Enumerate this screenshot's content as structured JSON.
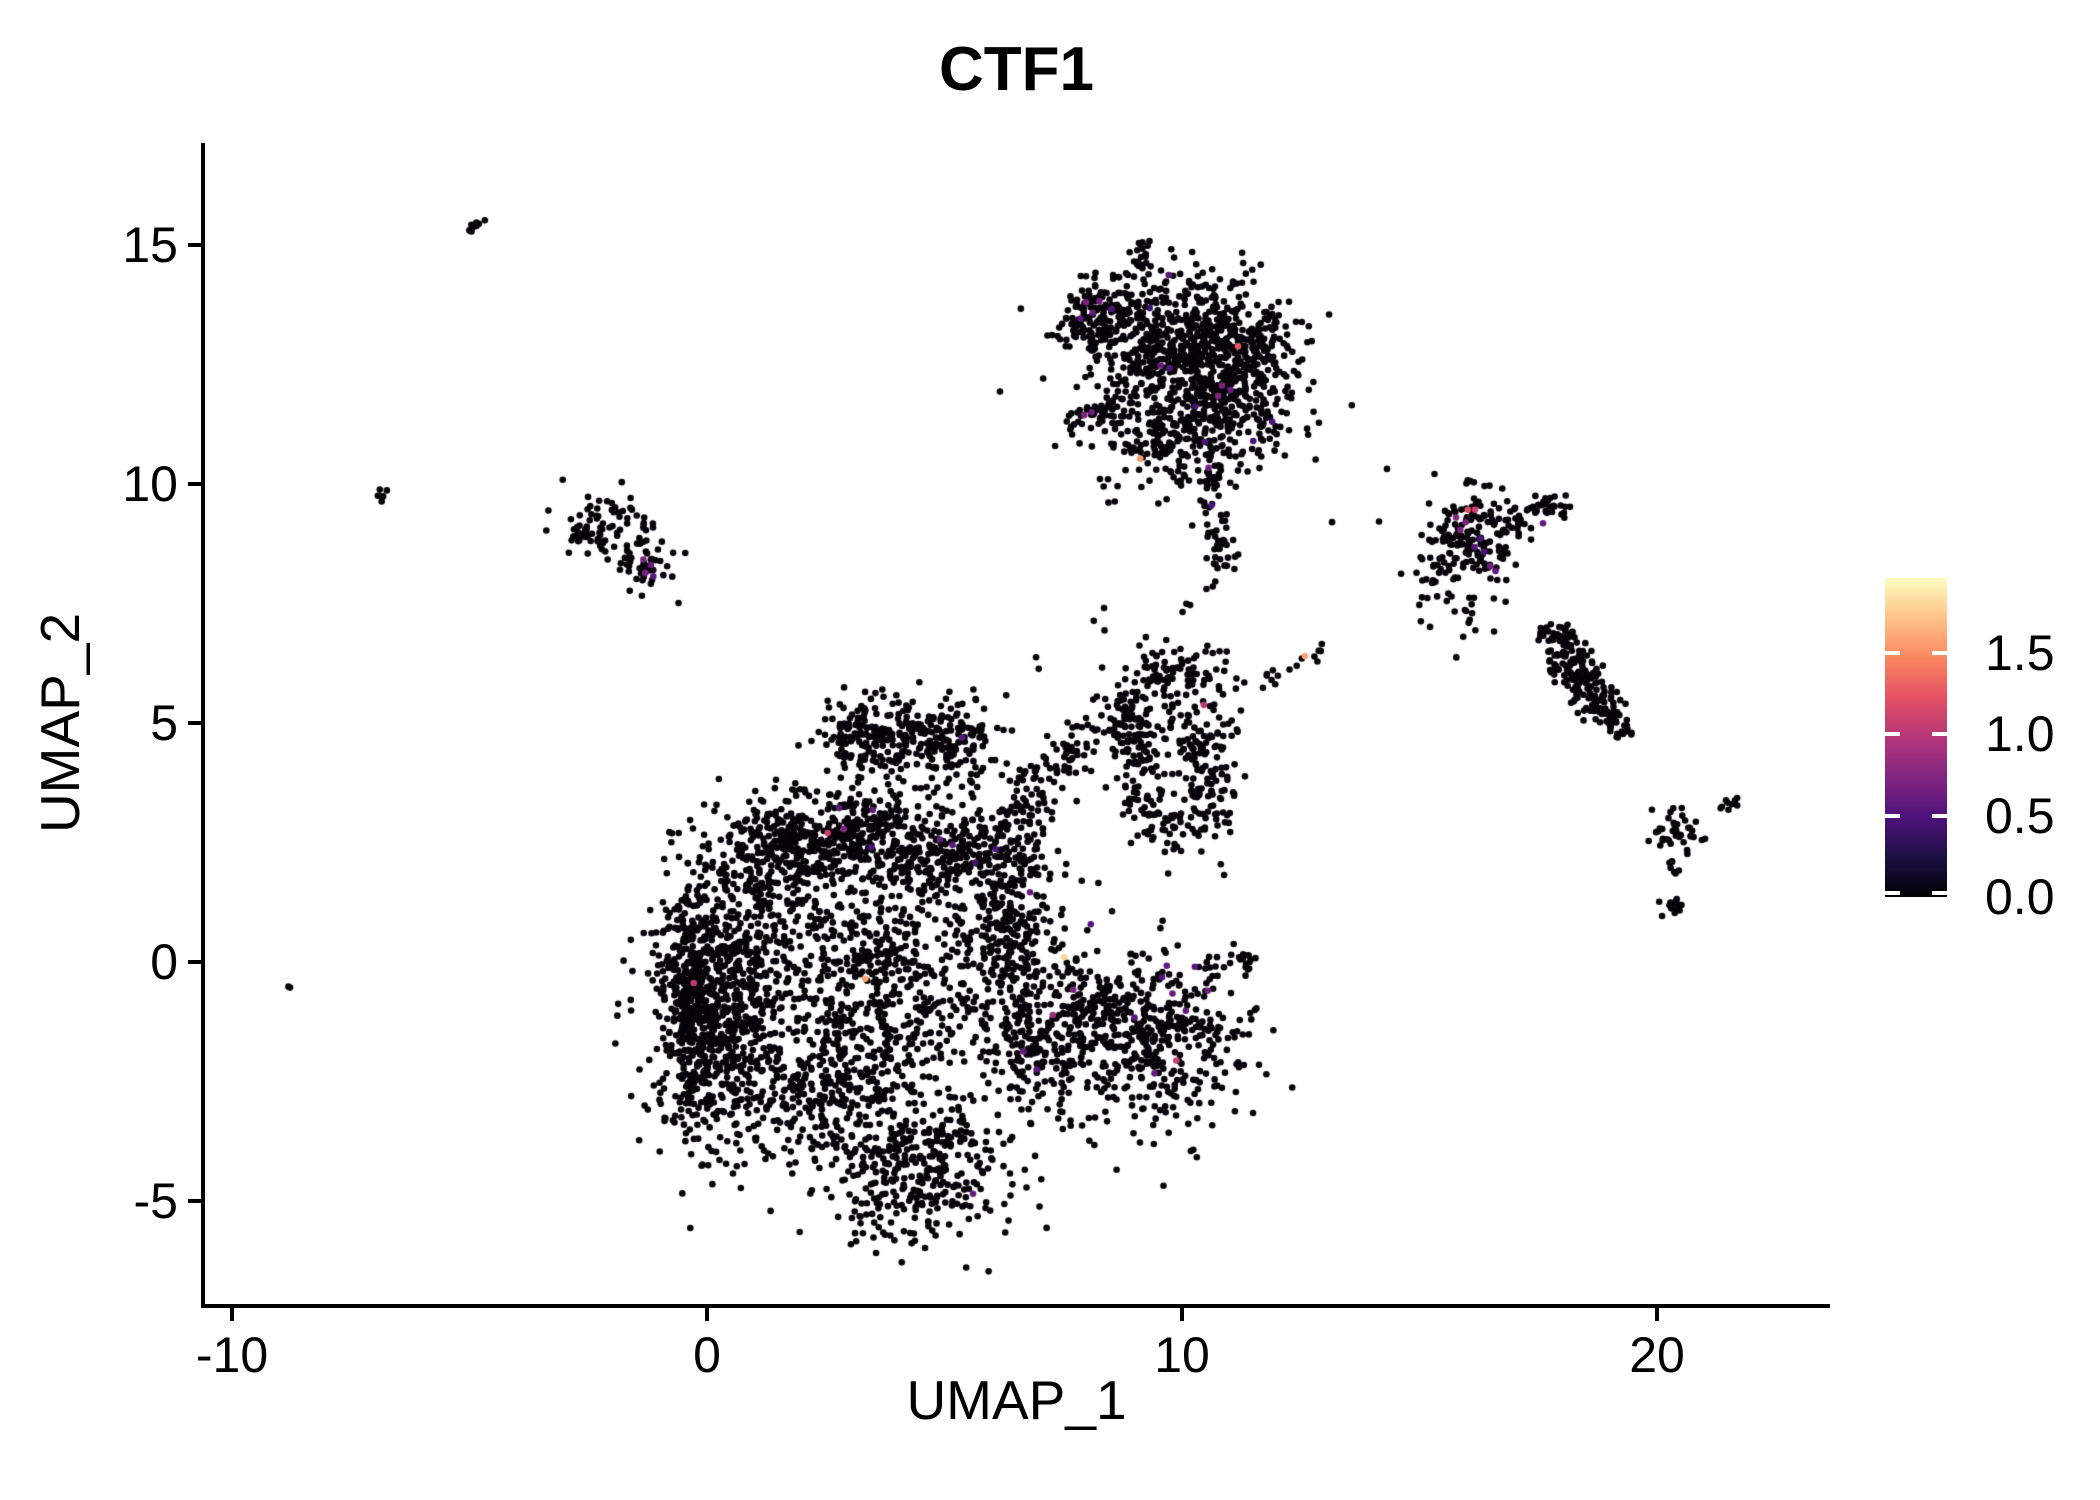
{
  "title": "CTF1",
  "axes": {
    "x": {
      "label": "UMAP_1",
      "ticks": [
        "-10",
        "0",
        "10",
        "20"
      ],
      "tick_values": [
        -10,
        0,
        10,
        20
      ],
      "domain": [
        -10.6,
        23.6
      ]
    },
    "y": {
      "label": "UMAP_2",
      "ticks": [
        "-5",
        "0",
        "5",
        "10",
        "15"
      ],
      "tick_values": [
        -5,
        0,
        5,
        10,
        15
      ],
      "domain": [
        -7.15,
        17.15
      ]
    }
  },
  "legend": {
    "tick_labels": [
      "0.0",
      "0.5",
      "1.0",
      "1.5"
    ],
    "tick_values": [
      0,
      0.5,
      1.0,
      1.5
    ],
    "value_max": 1.96,
    "colormap_name": "magma",
    "colormap_stops": [
      "#000004",
      "#1c1044",
      "#4f127b",
      "#812581",
      "#b5367a",
      "#e55064",
      "#fb8761",
      "#fec287",
      "#fcfdbf"
    ]
  },
  "chart_data": {
    "type": "scatter",
    "title": "CTF1",
    "xlabel": "UMAP_1",
    "ylabel": "UMAP_2",
    "xlim": [
      -10.6,
      23.6
    ],
    "ylim": [
      -7.15,
      17.15
    ],
    "grid": false,
    "legend_position": "right",
    "point_radius_px": 3.3,
    "base_point_color": "#060309",
    "colorbar": {
      "tick_values": [
        0,
        0.5,
        1.0,
        1.5
      ],
      "max_value": 1.96,
      "colormap": "magma"
    },
    "seed": 42,
    "clusters": [
      {
        "name": "top-upperleft-lobe",
        "shape": "gauss",
        "cx": 8.3,
        "cy": 13.55,
        "sx": 0.5,
        "sy": 0.4,
        "n": 170
      },
      {
        "name": "top-main-upper",
        "shape": "gauss",
        "cx": 10.3,
        "cy": 13.25,
        "sx": 0.85,
        "sy": 0.55,
        "n": 280
      },
      {
        "name": "top-right-lobe",
        "shape": "gauss",
        "cx": 11.2,
        "cy": 12.3,
        "sx": 0.7,
        "sy": 0.75,
        "n": 280
      },
      {
        "name": "top-center",
        "shape": "gauss",
        "cx": 9.7,
        "cy": 12.2,
        "sx": 0.8,
        "sy": 0.8,
        "n": 260
      },
      {
        "name": "top-lower-band",
        "shape": "gauss",
        "cx": 10.0,
        "cy": 10.95,
        "sx": 0.9,
        "sy": 0.55,
        "n": 200
      },
      {
        "name": "top-bottom-arm",
        "shape": "line",
        "x1": 10.5,
        "y1": 10.35,
        "x2": 10.85,
        "y2": 8.2,
        "w": 0.18,
        "n": 60
      },
      {
        "name": "top-spur",
        "shape": "line",
        "x1": 8.95,
        "y1": 14.3,
        "x2": 9.3,
        "y2": 15.1,
        "w": 0.1,
        "n": 20
      },
      {
        "name": "top-left-arm",
        "shape": "line",
        "x1": 7.6,
        "y1": 11.2,
        "x2": 8.65,
        "y2": 11.7,
        "w": 0.12,
        "n": 32
      },
      {
        "name": "top-halo",
        "shape": "gauss",
        "cx": 9.9,
        "cy": 12.3,
        "sx": 1.5,
        "sy": 1.35,
        "n": 90
      },
      {
        "name": "left-small-upper",
        "shape": "gauss",
        "cx": -2.1,
        "cy": 9.15,
        "sx": 0.45,
        "sy": 0.35,
        "n": 70
      },
      {
        "name": "left-small-lower",
        "shape": "gauss",
        "cx": -1.35,
        "cy": 8.35,
        "sx": 0.35,
        "sy": 0.3,
        "n": 45
      },
      {
        "name": "left-small-spur",
        "shape": "line",
        "x1": -2.95,
        "y1": 8.85,
        "x2": -2.35,
        "y2": 9.0,
        "w": 0.08,
        "n": 12
      },
      {
        "name": "tiny-streak-topleft",
        "shape": "line",
        "x1": -5.0,
        "y1": 15.3,
        "x2": -4.62,
        "y2": 15.62,
        "w": 0.05,
        "n": 8
      },
      {
        "name": "tiny-pair-left",
        "shape": "line",
        "x1": -7.0,
        "y1": 9.62,
        "x2": -6.72,
        "y2": 9.88,
        "w": 0.05,
        "n": 6
      },
      {
        "name": "lone-dot-left",
        "shape": "gauss",
        "cx": -8.82,
        "cy": -0.48,
        "sx": 0.04,
        "sy": 0.04,
        "n": 2
      },
      {
        "name": "right-cluster-main",
        "shape": "gauss",
        "cx": 16.1,
        "cy": 8.9,
        "sx": 0.45,
        "sy": 0.5,
        "n": 150
      },
      {
        "name": "right-cluster-arm",
        "shape": "line",
        "x1": 16.6,
        "y1": 9.15,
        "x2": 18.15,
        "y2": 9.72,
        "w": 0.14,
        "n": 55
      },
      {
        "name": "right-cluster-tail",
        "shape": "gauss",
        "cx": 15.6,
        "cy": 7.95,
        "sx": 0.5,
        "sy": 0.45,
        "n": 35
      },
      {
        "name": "right-cluster-dots",
        "shape": "gauss",
        "cx": 16.35,
        "cy": 7.05,
        "sx": 0.3,
        "sy": 0.35,
        "n": 8
      },
      {
        "name": "s-cluster-1",
        "shape": "line",
        "x1": 17.68,
        "y1": 6.95,
        "x2": 18.1,
        "y2": 6.55,
        "w": 0.2,
        "n": 45
      },
      {
        "name": "s-cluster-2",
        "shape": "line",
        "x1": 18.05,
        "y1": 6.55,
        "x2": 18.35,
        "y2": 5.9,
        "w": 0.22,
        "n": 60
      },
      {
        "name": "s-cluster-3",
        "shape": "line",
        "x1": 18.3,
        "y1": 5.9,
        "x2": 18.95,
        "y2": 5.35,
        "w": 0.24,
        "n": 70
      },
      {
        "name": "s-cluster-4",
        "shape": "line",
        "x1": 18.95,
        "y1": 5.35,
        "x2": 19.35,
        "y2": 4.72,
        "w": 0.16,
        "n": 40
      },
      {
        "name": "far-right-small",
        "shape": "gauss",
        "cx": 20.35,
        "cy": 2.7,
        "sx": 0.3,
        "sy": 0.26,
        "n": 40
      },
      {
        "name": "far-right-streak",
        "shape": "line",
        "x1": 21.32,
        "y1": 3.18,
        "x2": 21.7,
        "y2": 3.5,
        "w": 0.06,
        "n": 9
      },
      {
        "name": "far-right-drip",
        "shape": "line",
        "x1": 20.28,
        "y1": 2.28,
        "x2": 20.38,
        "y2": 1.78,
        "w": 0.06,
        "n": 7
      },
      {
        "name": "far-right-clump",
        "shape": "gauss",
        "cx": 20.35,
        "cy": 1.2,
        "sx": 0.16,
        "sy": 0.16,
        "n": 14
      },
      {
        "name": "trail-ne",
        "shape": "line",
        "x1": 11.5,
        "y1": 5.75,
        "x2": 13.05,
        "y2": 6.55,
        "w": 0.08,
        "n": 14
      },
      {
        "name": "ring-top",
        "shape": "gauss",
        "cx": 9.7,
        "cy": 6.05,
        "sx": 0.42,
        "sy": 0.3,
        "n": 60
      },
      {
        "name": "ring-left",
        "shape": "gauss",
        "cx": 9.1,
        "cy": 4.6,
        "sx": 0.3,
        "sy": 0.8,
        "n": 110
      },
      {
        "name": "ring-right",
        "shape": "gauss",
        "cx": 10.5,
        "cy": 4.35,
        "sx": 0.36,
        "sy": 1.0,
        "n": 130
      },
      {
        "name": "ring-bottom",
        "shape": "gauss",
        "cx": 9.8,
        "cy": 2.95,
        "sx": 0.5,
        "sy": 0.35,
        "n": 70
      },
      {
        "name": "ring-fill",
        "shape": "gauss",
        "cx": 9.9,
        "cy": 4.8,
        "sx": 0.7,
        "sy": 0.9,
        "n": 40
      },
      {
        "name": "arm-to-ring",
        "shape": "line",
        "x1": 6.2,
        "y1": 3.0,
        "x2": 9.0,
        "y2": 5.5,
        "w": 0.3,
        "n": 120
      },
      {
        "name": "cap-left",
        "shape": "gauss",
        "cx": 3.4,
        "cy": 4.7,
        "sx": 0.55,
        "sy": 0.45,
        "n": 170
      },
      {
        "name": "cap-right",
        "shape": "gauss",
        "cx": 5.0,
        "cy": 4.6,
        "sx": 0.55,
        "sy": 0.45,
        "n": 170
      },
      {
        "name": "ridge",
        "shape": "gauss",
        "cx": 2.8,
        "cy": 2.6,
        "sx": 1.1,
        "sy": 0.5,
        "n": 420
      },
      {
        "name": "ridge-right",
        "shape": "gauss",
        "cx": 5.2,
        "cy": 2.3,
        "sx": 0.8,
        "sy": 0.5,
        "n": 200
      },
      {
        "name": "left-lobe",
        "shape": "gauss",
        "cx": 0.3,
        "cy": -0.9,
        "sx": 0.75,
        "sy": 1.5,
        "n": 780
      },
      {
        "name": "left-edge-strip",
        "shape": "gauss",
        "cx": -0.3,
        "cy": -0.5,
        "sx": 0.35,
        "sy": 1.3,
        "n": 280
      },
      {
        "name": "center-fill",
        "shape": "gauss",
        "cx": 3.5,
        "cy": -0.3,
        "sx": 1.3,
        "sy": 1.3,
        "n": 600
      },
      {
        "name": "right-band",
        "shape": "gauss",
        "cx": 6.4,
        "cy": 0.6,
        "sx": 0.6,
        "sy": 1.5,
        "n": 420
      },
      {
        "name": "bottom-lobe",
        "shape": "gauss",
        "cx": 4.4,
        "cy": -4.4,
        "sx": 1.0,
        "sy": 0.7,
        "n": 360
      },
      {
        "name": "south-mid",
        "shape": "gauss",
        "cx": 2.5,
        "cy": -2.8,
        "sx": 1.0,
        "sy": 0.7,
        "n": 260
      },
      {
        "name": "se-wedge",
        "shape": "gauss",
        "cx": 7.2,
        "cy": -1.8,
        "sx": 0.6,
        "sy": 0.8,
        "n": 180
      },
      {
        "name": "right-lower-lobe",
        "shape": "gauss",
        "cx": 9.5,
        "cy": -1.6,
        "sx": 1.0,
        "sy": 0.95,
        "n": 430
      },
      {
        "name": "lobe-ne-tip",
        "shape": "line",
        "x1": 10.6,
        "y1": -0.2,
        "x2": 11.45,
        "y2": 0.15,
        "w": 0.12,
        "n": 22
      },
      {
        "name": "bridge",
        "shape": "line",
        "x1": 7.6,
        "y1": -1.2,
        "x2": 8.6,
        "y2": -0.6,
        "w": 0.3,
        "n": 60
      },
      {
        "name": "upperleft-shoulder",
        "shape": "gauss",
        "cx": 1.5,
        "cy": 2.0,
        "sx": 0.6,
        "sy": 0.7,
        "n": 160
      },
      {
        "name": "stray-1",
        "shape": "gauss",
        "cx": 8.4,
        "cy": 7.2,
        "sx": 0.15,
        "sy": 0.15,
        "n": 3
      },
      {
        "name": "stray-2",
        "shape": "gauss",
        "cx": 10.15,
        "cy": 7.55,
        "sx": 0.1,
        "sy": 0.1,
        "n": 2
      },
      {
        "name": "stray-3",
        "shape": "gauss",
        "cx": 12.0,
        "cy": 5.9,
        "sx": 0.08,
        "sy": 0.08,
        "n": 2
      },
      {
        "name": "stray-4",
        "shape": "gauss",
        "cx": 15.1,
        "cy": 7.35,
        "sx": 0.2,
        "sy": 0.2,
        "n": 4
      },
      {
        "name": "stray-5",
        "shape": "gauss",
        "cx": 10.7,
        "cy": 7.7,
        "sx": 0.1,
        "sy": 0.2,
        "n": 3
      },
      {
        "name": "stray-6",
        "shape": "gauss",
        "cx": 6.9,
        "cy": 6.3,
        "sx": 0.1,
        "sy": 0.1,
        "n": 2
      }
    ],
    "expression_points": [
      [
        9.72,
        14.37,
        0.55
      ],
      [
        7.98,
        13.8,
        0.7
      ],
      [
        8.26,
        13.83,
        0.65
      ],
      [
        8.12,
        13.58,
        0.6
      ],
      [
        8.52,
        13.66,
        0.5
      ],
      [
        7.86,
        13.46,
        0.55
      ],
      [
        9.32,
        13.68,
        0.4
      ],
      [
        11.18,
        12.88,
        1.25
      ],
      [
        9.55,
        12.48,
        0.6
      ],
      [
        9.74,
        12.42,
        0.5
      ],
      [
        10.84,
        12.06,
        0.7
      ],
      [
        11.02,
        11.97,
        0.6
      ],
      [
        10.76,
        11.84,
        0.75
      ],
      [
        10.28,
        11.62,
        0.45
      ],
      [
        7.94,
        11.44,
        0.7
      ],
      [
        8.1,
        11.5,
        0.65
      ],
      [
        10.48,
        10.88,
        0.5
      ],
      [
        9.12,
        10.53,
        1.55
      ],
      [
        10.56,
        10.34,
        0.65
      ],
      [
        10.62,
        9.55,
        0.5
      ],
      [
        11.9,
        11.3,
        0.5
      ],
      [
        11.5,
        10.9,
        0.45
      ],
      [
        -1.34,
        8.42,
        0.7
      ],
      [
        -1.18,
        8.3,
        0.6
      ],
      [
        -1.3,
        8.14,
        0.7
      ],
      [
        -1.13,
        8.07,
        0.55
      ],
      [
        16.02,
        9.46,
        1.2
      ],
      [
        16.17,
        9.46,
        1.1
      ],
      [
        15.77,
        9.3,
        0.75
      ],
      [
        15.97,
        9.2,
        0.7
      ],
      [
        15.86,
        9.04,
        0.7
      ],
      [
        16.28,
        8.86,
        0.5
      ],
      [
        16.16,
        8.68,
        0.55
      ],
      [
        16.36,
        8.58,
        0.5
      ],
      [
        16.49,
        8.28,
        0.65
      ],
      [
        16.6,
        8.18,
        0.55
      ],
      [
        17.6,
        9.18,
        0.6
      ],
      [
        10.46,
        5.38,
        1.0
      ],
      [
        12.59,
        6.4,
        1.6
      ],
      [
        5.37,
        4.69,
        0.55
      ],
      [
        2.78,
        3.22,
        0.55
      ],
      [
        3.49,
        3.18,
        0.6
      ],
      [
        2.54,
        2.7,
        1.1
      ],
      [
        2.88,
        2.78,
        0.75
      ],
      [
        3.45,
        2.4,
        0.5
      ],
      [
        4.9,
        2.56,
        0.6
      ],
      [
        5.17,
        2.45,
        0.55
      ],
      [
        6.08,
        2.36,
        0.5
      ],
      [
        5.65,
        2.08,
        0.45
      ],
      [
        6.8,
        1.46,
        0.6
      ],
      [
        8.08,
        0.79,
        0.5
      ],
      [
        7.52,
        0.1,
        1.8
      ],
      [
        3.33,
        -0.35,
        1.6
      ],
      [
        -0.28,
        -0.44,
        1.05
      ],
      [
        7.71,
        -0.58,
        0.7
      ],
      [
        7.28,
        -1.11,
        0.85
      ],
      [
        6.66,
        -1.87,
        0.6
      ],
      [
        6.94,
        -2.25,
        0.55
      ],
      [
        5.6,
        -4.85,
        0.6
      ],
      [
        9.68,
        -0.08,
        0.6
      ],
      [
        10.27,
        -0.1,
        0.55
      ],
      [
        9.58,
        -0.32,
        0.5
      ],
      [
        9.8,
        -0.66,
        0.6
      ],
      [
        10.54,
        -0.6,
        0.65
      ],
      [
        10.08,
        -1.02,
        0.6
      ],
      [
        9.0,
        -1.16,
        0.55
      ],
      [
        9.88,
        -2.06,
        1.05
      ],
      [
        9.42,
        -2.33,
        0.6
      ]
    ]
  }
}
